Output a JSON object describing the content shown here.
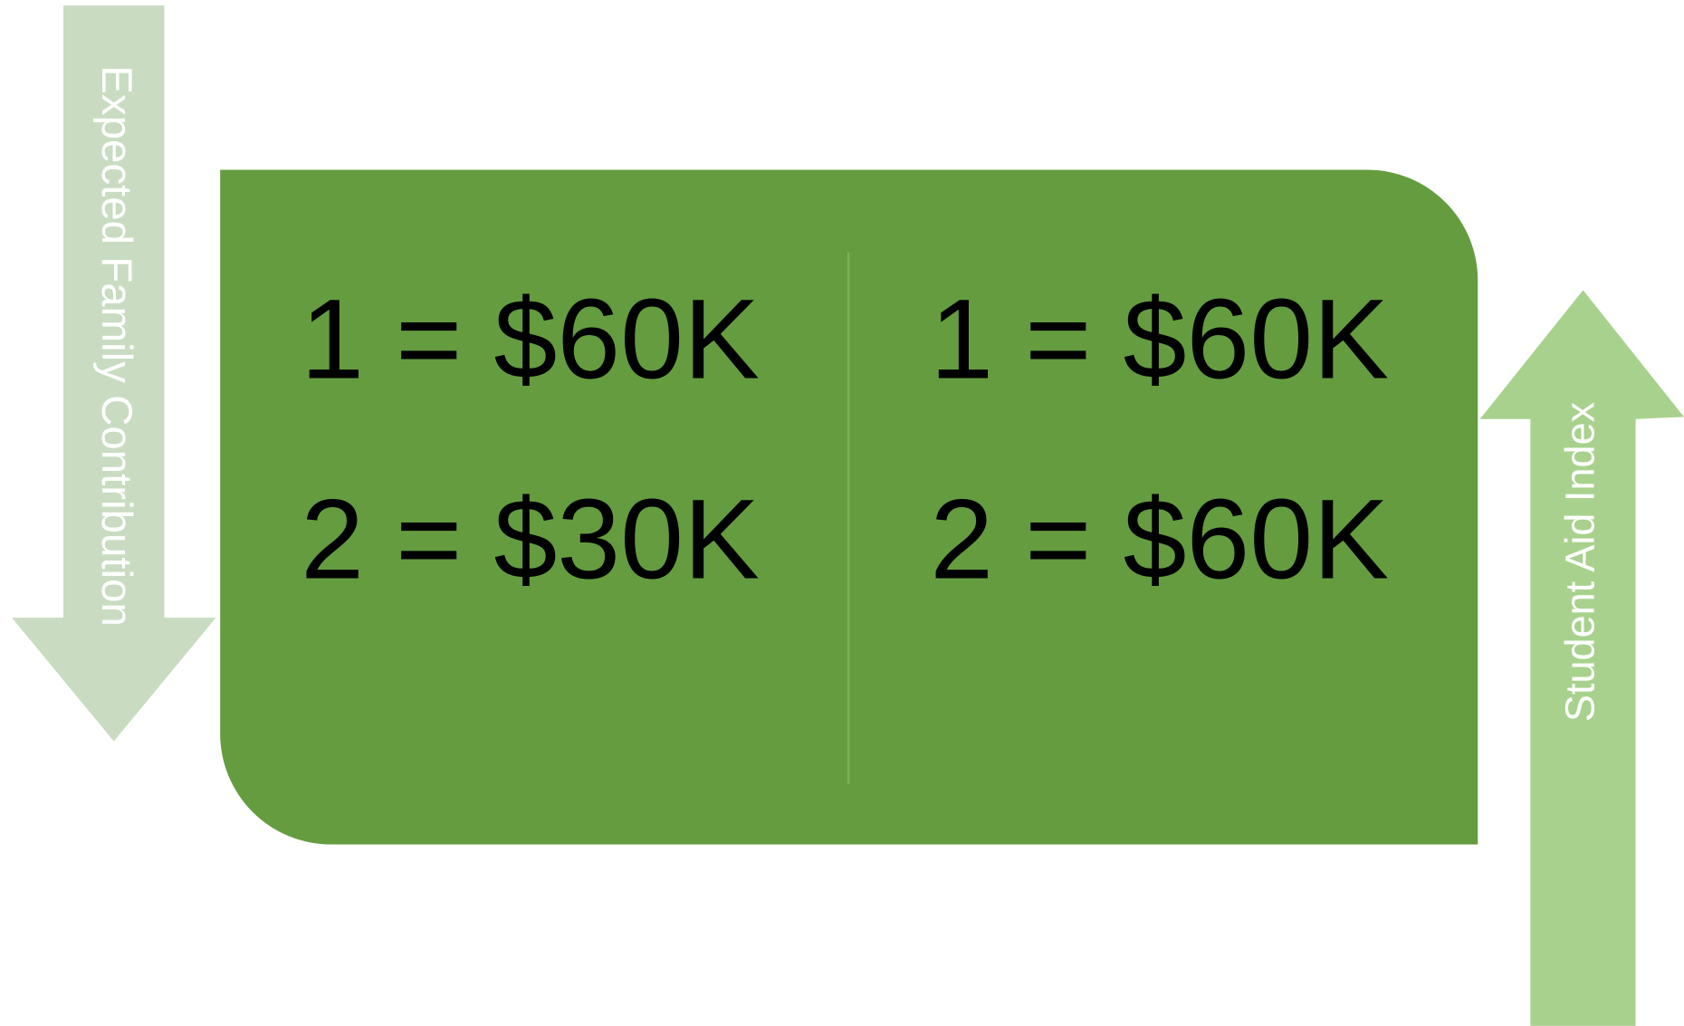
{
  "left_arrow": {
    "label": "Expected Family Contribution"
  },
  "panel": {
    "columns": [
      {
        "lines": [
          "1 = $60K",
          "2 = $30K"
        ]
      },
      {
        "lines": [
          "1 = $60K",
          "2 = $60K"
        ]
      }
    ]
  },
  "right_arrow": {
    "label": "Student Aid Index"
  }
}
